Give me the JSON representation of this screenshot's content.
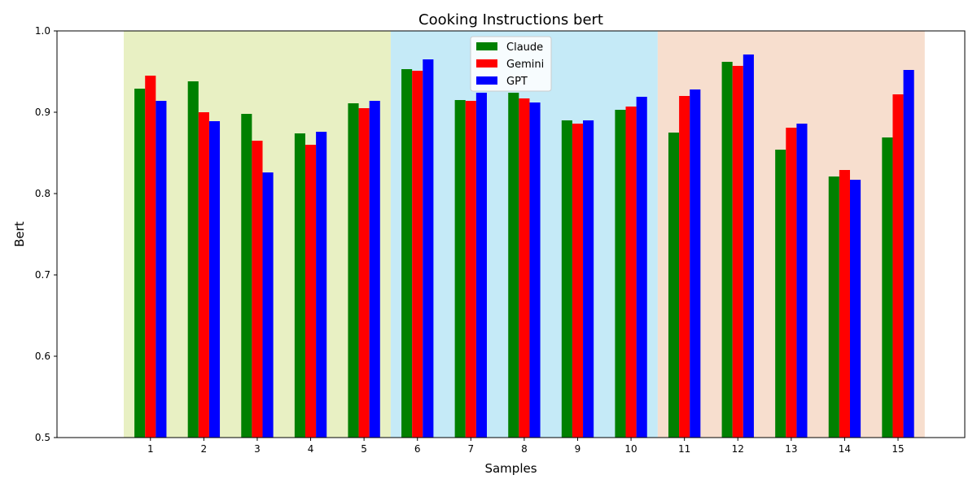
{
  "chart_data": {
    "type": "bar",
    "title": "Cooking Instructions bert",
    "xlabel": "Samples",
    "ylabel": "Bert",
    "ylim": [
      0.5,
      1.0
    ],
    "yticks": [
      "0.5",
      "0.6",
      "0.7",
      "0.8",
      "0.9",
      "1.0"
    ],
    "categories": [
      "1",
      "2",
      "3",
      "4",
      "5",
      "6",
      "7",
      "8",
      "9",
      "10",
      "11",
      "12",
      "13",
      "14",
      "15"
    ],
    "series": [
      {
        "name": "Claude",
        "color": "#008000",
        "values": [
          0.929,
          0.938,
          0.898,
          0.874,
          0.911,
          0.953,
          0.915,
          0.924,
          0.89,
          0.903,
          0.875,
          0.962,
          0.854,
          0.821,
          0.869
        ]
      },
      {
        "name": "Gemini",
        "color": "#ff0000",
        "values": [
          0.945,
          0.9,
          0.865,
          0.86,
          0.905,
          0.951,
          0.914,
          0.917,
          0.886,
          0.907,
          0.92,
          0.957,
          0.881,
          0.829,
          0.922
        ]
      },
      {
        "name": "GPT",
        "color": "#0000ff",
        "values": [
          0.914,
          0.889,
          0.826,
          0.876,
          0.914,
          0.965,
          0.924,
          0.912,
          0.89,
          0.919,
          0.928,
          0.971,
          0.886,
          0.817,
          0.952
        ]
      }
    ],
    "background_bands": [
      {
        "from_sample": 1,
        "to_sample": 5,
        "color": "#e8f0c3"
      },
      {
        "from_sample": 6,
        "to_sample": 10,
        "color": "#c5eaf7"
      },
      {
        "from_sample": 11,
        "to_sample": 15,
        "color": "#f7dece"
      }
    ],
    "legend_position": "top-center",
    "grid": false
  }
}
